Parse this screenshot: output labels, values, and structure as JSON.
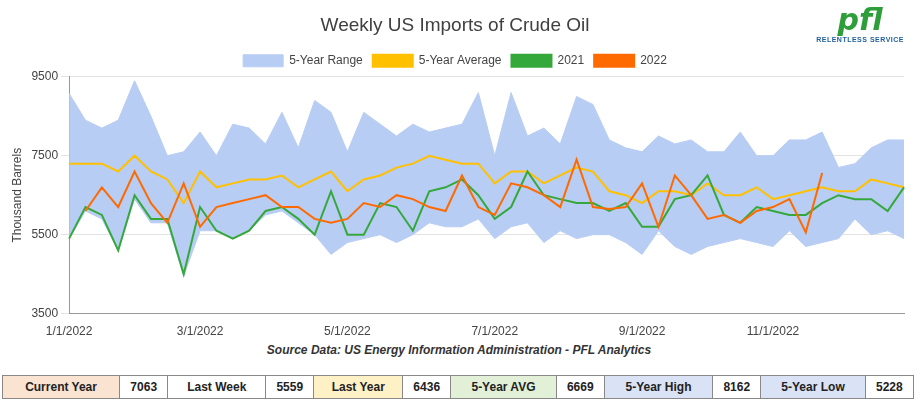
{
  "chart_data": {
    "type": "line",
    "title": "Weekly US Imports of Crude Oil",
    "y_label": "Thousand Barrels",
    "source": "Source Data: US Energy Information Administration - PFL Analytics",
    "logo": {
      "text": "pfl",
      "tagline": "RELENTLESS SERVICE"
    },
    "legend": "top",
    "grid": true,
    "categories": [
      "1/1/2022",
      null,
      null,
      null,
      null,
      null,
      null,
      null,
      "3/1/2022",
      null,
      null,
      null,
      null,
      null,
      null,
      null,
      null,
      "5/1/2022",
      null,
      null,
      null,
      null,
      null,
      null,
      null,
      null,
      "7/1/2022",
      null,
      null,
      null,
      null,
      null,
      null,
      null,
      null,
      "9/1/2022",
      null,
      null,
      null,
      null,
      null,
      null,
      null,
      "11/1/2022",
      null,
      null,
      null,
      null,
      null,
      null,
      null,
      null
    ],
    "ylim": [
      3500,
      9500
    ],
    "yticks": [
      3500,
      5500,
      7500,
      9500
    ],
    "series": [
      {
        "name": "5-Year Range",
        "type": "area",
        "color": "#b8cdf4",
        "high": [
          9080,
          8400,
          8200,
          8400,
          9400,
          8500,
          7500,
          7600,
          8100,
          7500,
          8300,
          8200,
          7800,
          8600,
          7700,
          8900,
          8600,
          7600,
          8600,
          8300,
          8000,
          8300,
          8100,
          8200,
          8300,
          9100,
          7500,
          9100,
          8000,
          8200,
          7800,
          9000,
          8800,
          7900,
          7700,
          7600,
          8000,
          7800,
          7900,
          7600,
          7600,
          8100,
          7500,
          7500,
          7900,
          7900,
          8100,
          7200,
          7300,
          7700,
          7900,
          7900
        ],
        "low": [
          5400,
          6100,
          5900,
          5100,
          6400,
          5800,
          5800,
          4450,
          5600,
          5600,
          5400,
          5600,
          6000,
          6100,
          5800,
          5500,
          5000,
          5300,
          5400,
          5500,
          5300,
          5500,
          5800,
          5700,
          5700,
          5900,
          5400,
          5700,
          5800,
          5300,
          5600,
          5400,
          5500,
          5500,
          5300,
          5000,
          5600,
          5200,
          5000,
          5200,
          5300,
          5400,
          5300,
          5200,
          5600,
          5200,
          5300,
          5400,
          5900,
          5500,
          5600,
          5400
        ]
      },
      {
        "name": "5-Year Average",
        "type": "line",
        "color": "#ffc000",
        "values": [
          7300,
          7300,
          7300,
          7100,
          7500,
          7100,
          6900,
          6300,
          7100,
          6700,
          6800,
          6900,
          6900,
          7000,
          6700,
          6900,
          7100,
          6600,
          6900,
          7000,
          7200,
          7300,
          7500,
          7400,
          7300,
          7300,
          6800,
          7100,
          7100,
          6800,
          7000,
          7200,
          7100,
          6600,
          6500,
          6300,
          6600,
          6600,
          6500,
          6800,
          6500,
          6500,
          6700,
          6400,
          6500,
          6600,
          6700,
          6600,
          6600,
          6900,
          6800,
          6700
        ]
      },
      {
        "name": "2021",
        "type": "line",
        "color": "#34a83a",
        "values": [
          5400,
          6200,
          6000,
          5100,
          6500,
          5900,
          5900,
          4500,
          6200,
          5600,
          5400,
          5600,
          6100,
          6200,
          5900,
          5500,
          6600,
          5500,
          5500,
          6300,
          6200,
          5600,
          6600,
          6700,
          6900,
          6500,
          5900,
          6200,
          7100,
          6500,
          6400,
          6300,
          6300,
          6100,
          6300,
          5700,
          5700,
          6400,
          6500,
          7000,
          6000,
          5800,
          6200,
          6100,
          6000,
          6000,
          6300,
          6500,
          6400,
          6400,
          6100,
          6700
        ]
      },
      {
        "name": "2022",
        "type": "line",
        "color": "#ff6a00",
        "values": [
          null,
          6100,
          6700,
          6200,
          7100,
          6300,
          5800,
          6800,
          5700,
          6200,
          6300,
          6400,
          6500,
          6200,
          6200,
          5900,
          5800,
          5900,
          6300,
          6200,
          6500,
          6400,
          6200,
          6100,
          7000,
          6200,
          6000,
          6800,
          6700,
          6500,
          6200,
          7400,
          6200,
          6150,
          6200,
          6800,
          5700,
          7000,
          6500,
          5900,
          6000,
          5800,
          6100,
          6200,
          6400,
          5559,
          7063,
          null,
          null,
          null,
          null,
          null
        ]
      }
    ],
    "stats": [
      {
        "label": "Current Year",
        "value": 7063
      },
      {
        "label": "Last Week",
        "value": 5559
      },
      {
        "label": "Last Year",
        "value": 6436
      },
      {
        "label": "5-Year AVG",
        "value": 6669
      },
      {
        "label": "5-Year High",
        "value": 8162
      },
      {
        "label": "5-Year Low",
        "value": 5228
      }
    ]
  }
}
